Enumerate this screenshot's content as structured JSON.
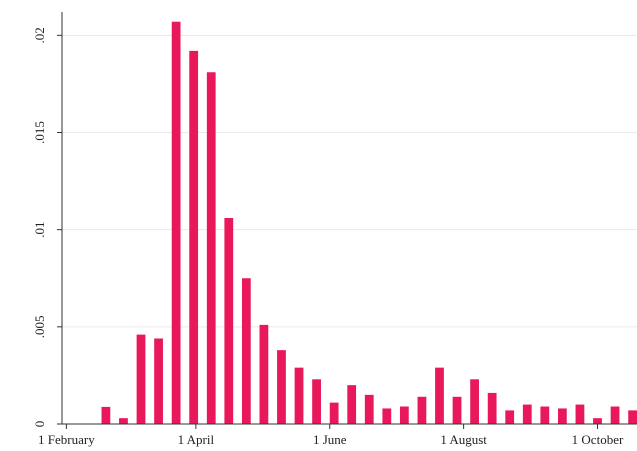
{
  "chart_data": {
    "type": "bar",
    "color": "#e8185a",
    "x": [
      "19 February",
      "27 February",
      "7 March",
      "15 March",
      "23 March",
      "31 March",
      "8 April",
      "16 April",
      "24 April",
      "2 May",
      "10 May",
      "18 May",
      "26 May",
      "3 June",
      "11 June",
      "19 June",
      "27 June",
      "5 July",
      "13 July",
      "21 July",
      "29 July",
      "6 August",
      "14 August",
      "22 August",
      "30 August",
      "7 September",
      "15 September",
      "23 September",
      "1 October",
      "9 October",
      "17 October"
    ],
    "values": [
      0.00088,
      0.0003,
      0.0046,
      0.0044,
      0.0207,
      0.0192,
      0.0181,
      0.0106,
      0.0075,
      0.0051,
      0.0038,
      0.0029,
      0.0023,
      0.0011,
      0.002,
      0.0015,
      0.0008,
      0.0009,
      0.0014,
      0.0029,
      0.0014,
      0.0023,
      0.0016,
      0.0007,
      0.001,
      0.0009,
      0.0008,
      0.001,
      0.0003,
      0.0009,
      0.0007
    ],
    "xlim": [
      "30 January",
      "19 October"
    ],
    "xticks": [
      "1 February",
      "1 April",
      "1 June",
      "1 August",
      "1 October"
    ],
    "ylim": [
      0,
      0.0212
    ],
    "yticks": [
      0,
      {
        "value": 0.005,
        "label": ".005"
      },
      {
        "value": 0.01,
        "label": ".01"
      },
      {
        "value": 0.015,
        "label": ".015"
      },
      {
        "value": 0.02,
        "label": ".02"
      }
    ],
    "grid": true
  }
}
